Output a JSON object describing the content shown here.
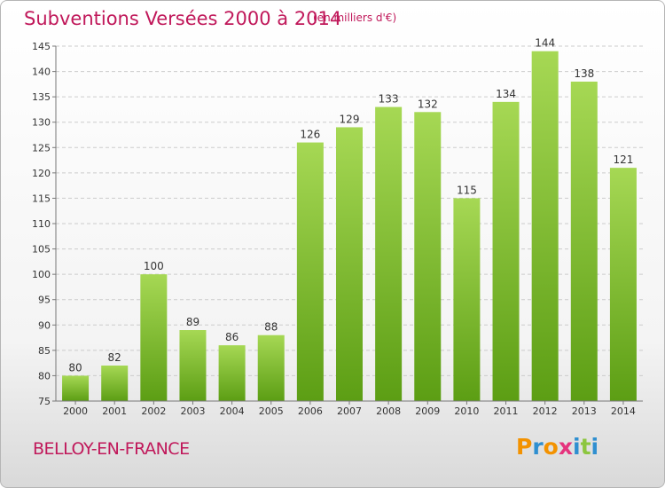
{
  "header": {
    "title": "Subventions Versées 2000 à 2014",
    "subtitle": "(en milliers d'€)"
  },
  "footer": {
    "town": "BELLOY-EN-FRANCE",
    "logo": "Proxiti"
  },
  "colors": {
    "title": "#c0185a",
    "bar_light": "#a6d854",
    "bar_dark": "#5c9e14",
    "grid": "#cccccc",
    "logo_letters": [
      "#f39200",
      "#2f8fd0",
      "#f39200",
      "#e5337d",
      "#2f8fd0",
      "#8cc63f",
      "#2f8fd0"
    ]
  },
  "chart_data": {
    "type": "bar",
    "categories": [
      "2000",
      "2001",
      "2002",
      "2003",
      "2004",
      "2005",
      "2006",
      "2007",
      "2008",
      "2009",
      "2010",
      "2011",
      "2012",
      "2013",
      "2014"
    ],
    "values": [
      80,
      82,
      100,
      89,
      86,
      88,
      126,
      129,
      133,
      132,
      115,
      134,
      144,
      138,
      121
    ],
    "ylim": [
      75,
      145
    ],
    "yticks": [
      75,
      80,
      85,
      90,
      95,
      100,
      105,
      110,
      115,
      120,
      125,
      130,
      135,
      140,
      145
    ],
    "grid": "horizontal dashed",
    "data_labels": true,
    "legend": "none"
  }
}
